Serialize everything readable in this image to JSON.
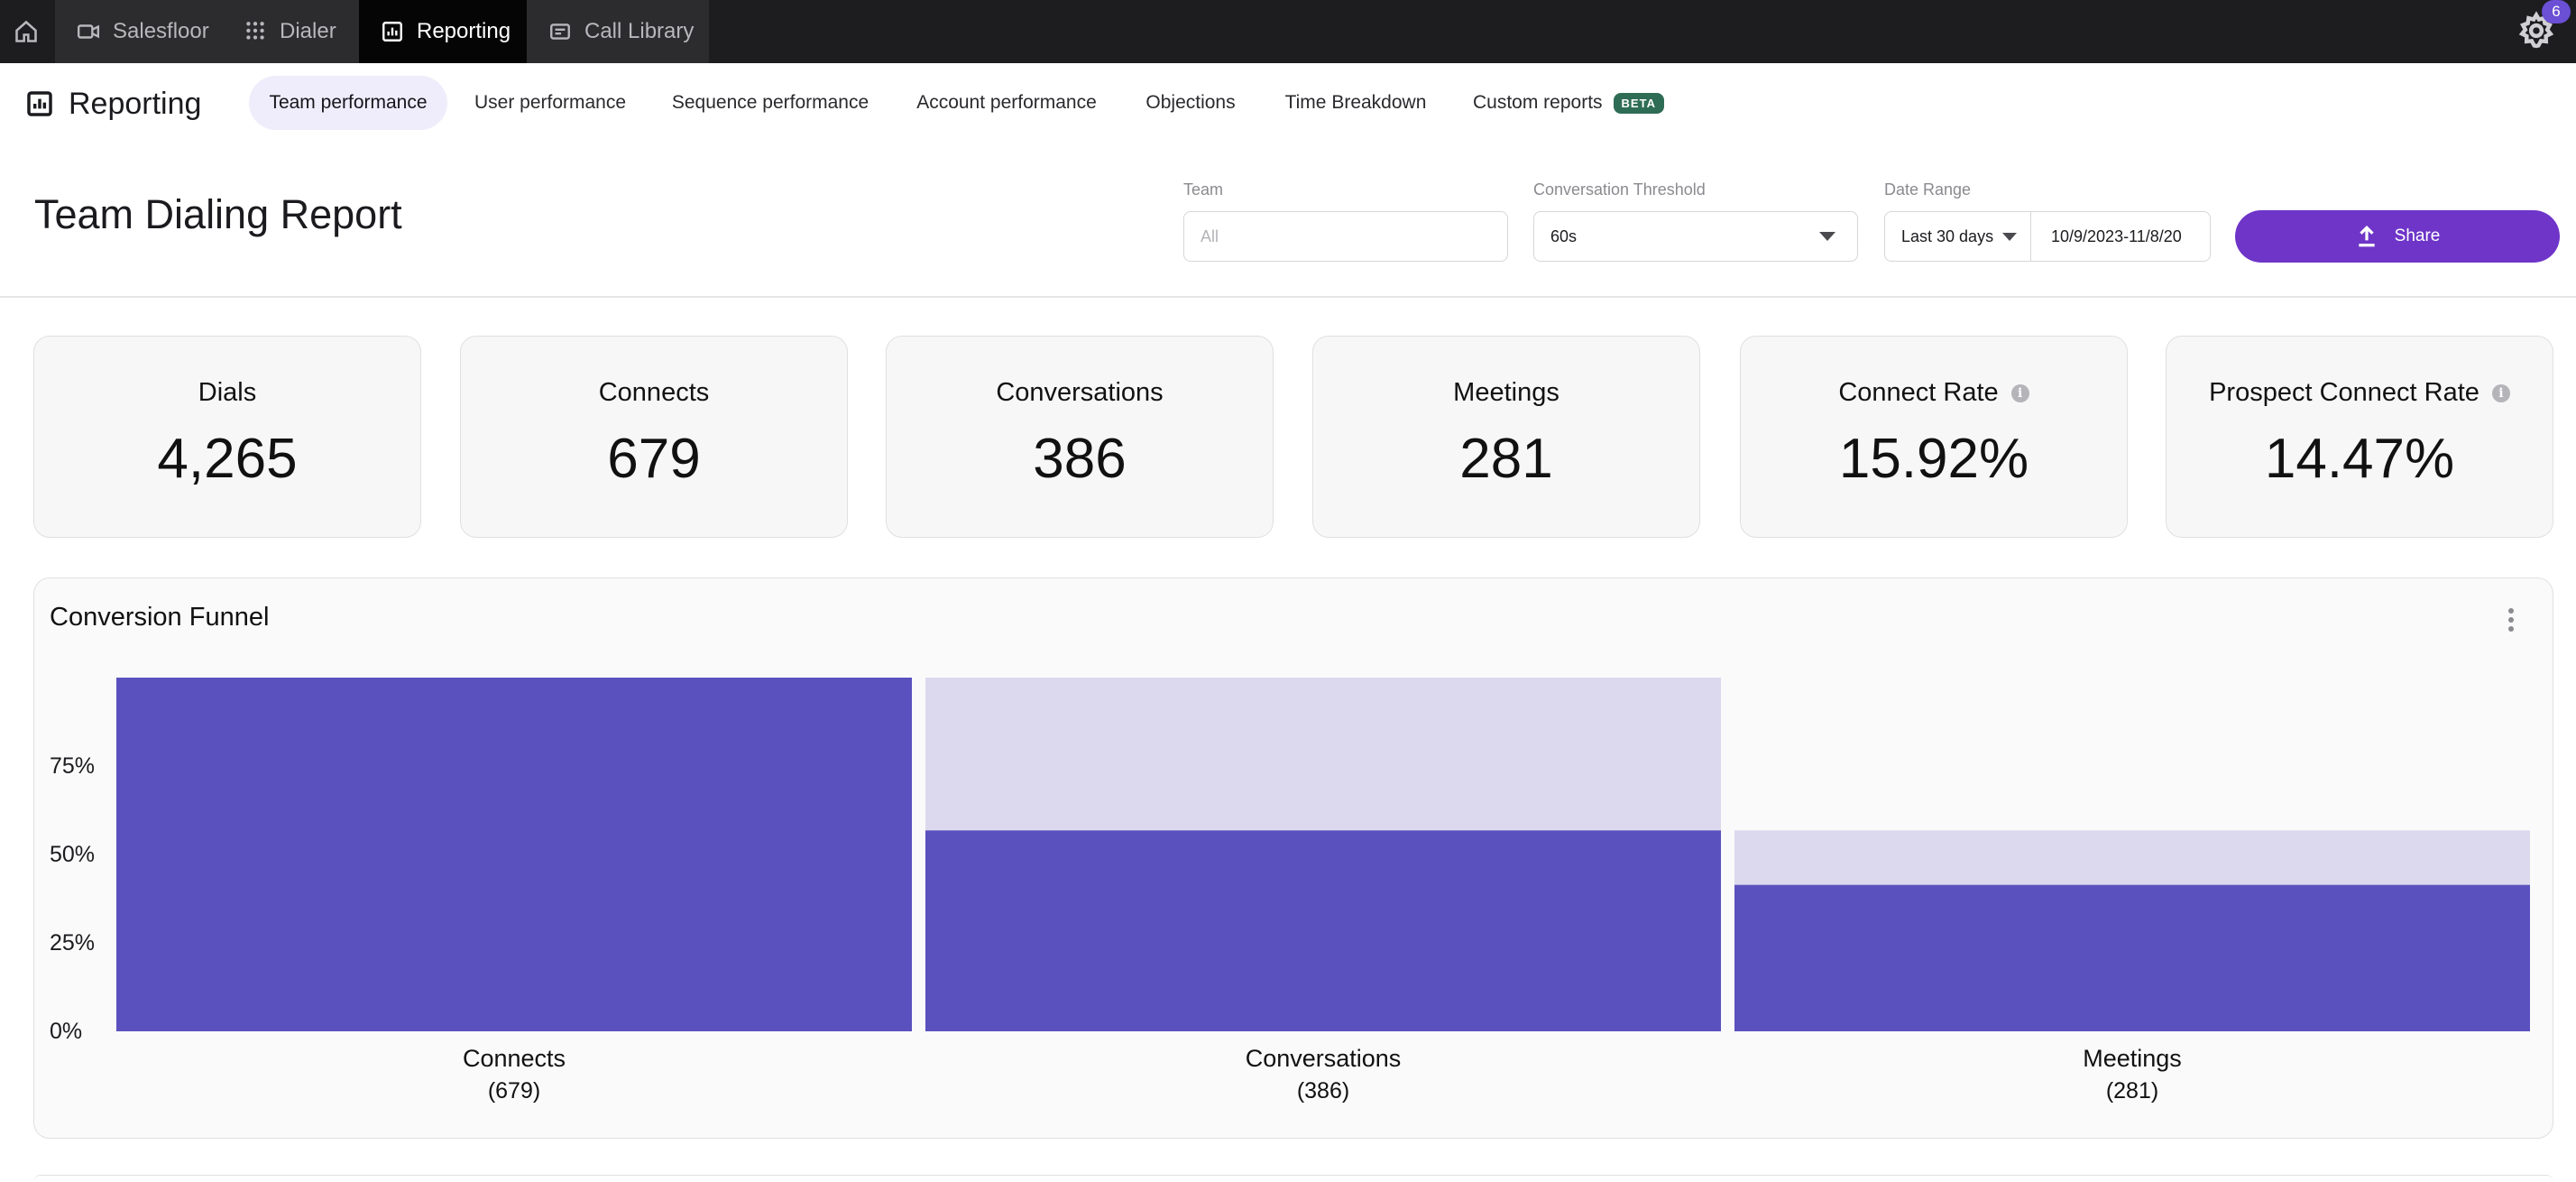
{
  "topbar": {
    "tabs": [
      {
        "label": "Salesfloor",
        "icon": "video-camera-icon"
      },
      {
        "label": "Dialer",
        "icon": "dialpad-icon"
      },
      {
        "label": "Reporting",
        "icon": "bar-chart-icon"
      },
      {
        "label": "Call Library",
        "icon": "card-stack-icon"
      }
    ],
    "notifications": "6"
  },
  "subnav": {
    "title": "Reporting",
    "tabs": [
      {
        "label": "Team performance"
      },
      {
        "label": "User performance"
      },
      {
        "label": "Sequence performance"
      },
      {
        "label": "Account performance"
      },
      {
        "label": "Objections"
      },
      {
        "label": "Time Breakdown"
      },
      {
        "label": "Custom reports"
      }
    ],
    "beta_label": "BETA"
  },
  "header": {
    "title": "Team Dialing Report",
    "filters": {
      "team_label": "Team",
      "team_placeholder": "All",
      "threshold_label": "Conversation Threshold",
      "threshold_value": "60s",
      "date_label": "Date Range",
      "date_preset": "Last 30 days",
      "date_value": "10/9/2023-11/8/20"
    },
    "share_label": "Share"
  },
  "stats": [
    {
      "label": "Dials",
      "value": "4,265"
    },
    {
      "label": "Connects",
      "value": "679"
    },
    {
      "label": "Conversations",
      "value": "386"
    },
    {
      "label": "Meetings",
      "value": "281"
    },
    {
      "label": "Connect Rate",
      "value": "15.92%"
    },
    {
      "label": "Prospect Connect Rate",
      "value": "14.47%"
    }
  ],
  "funnel": {
    "title": "Conversion Funnel"
  },
  "chart_data": {
    "type": "bar",
    "title": "Conversion Funnel",
    "categories": [
      "Connects",
      "Conversations",
      "Meetings"
    ],
    "category_counts": [
      "(679)",
      "(386)",
      "(281)"
    ],
    "yticks": [
      "0%",
      "25%",
      "50%",
      "75%"
    ],
    "ylim": [
      0,
      100
    ],
    "series": [
      {
        "values": [
          100,
          56.8,
          41.4
        ],
        "color": "#5b51be"
      },
      {
        "values": [
          100,
          100,
          56.8
        ],
        "color": "#dcd9ee"
      }
    ],
    "grid": false
  }
}
